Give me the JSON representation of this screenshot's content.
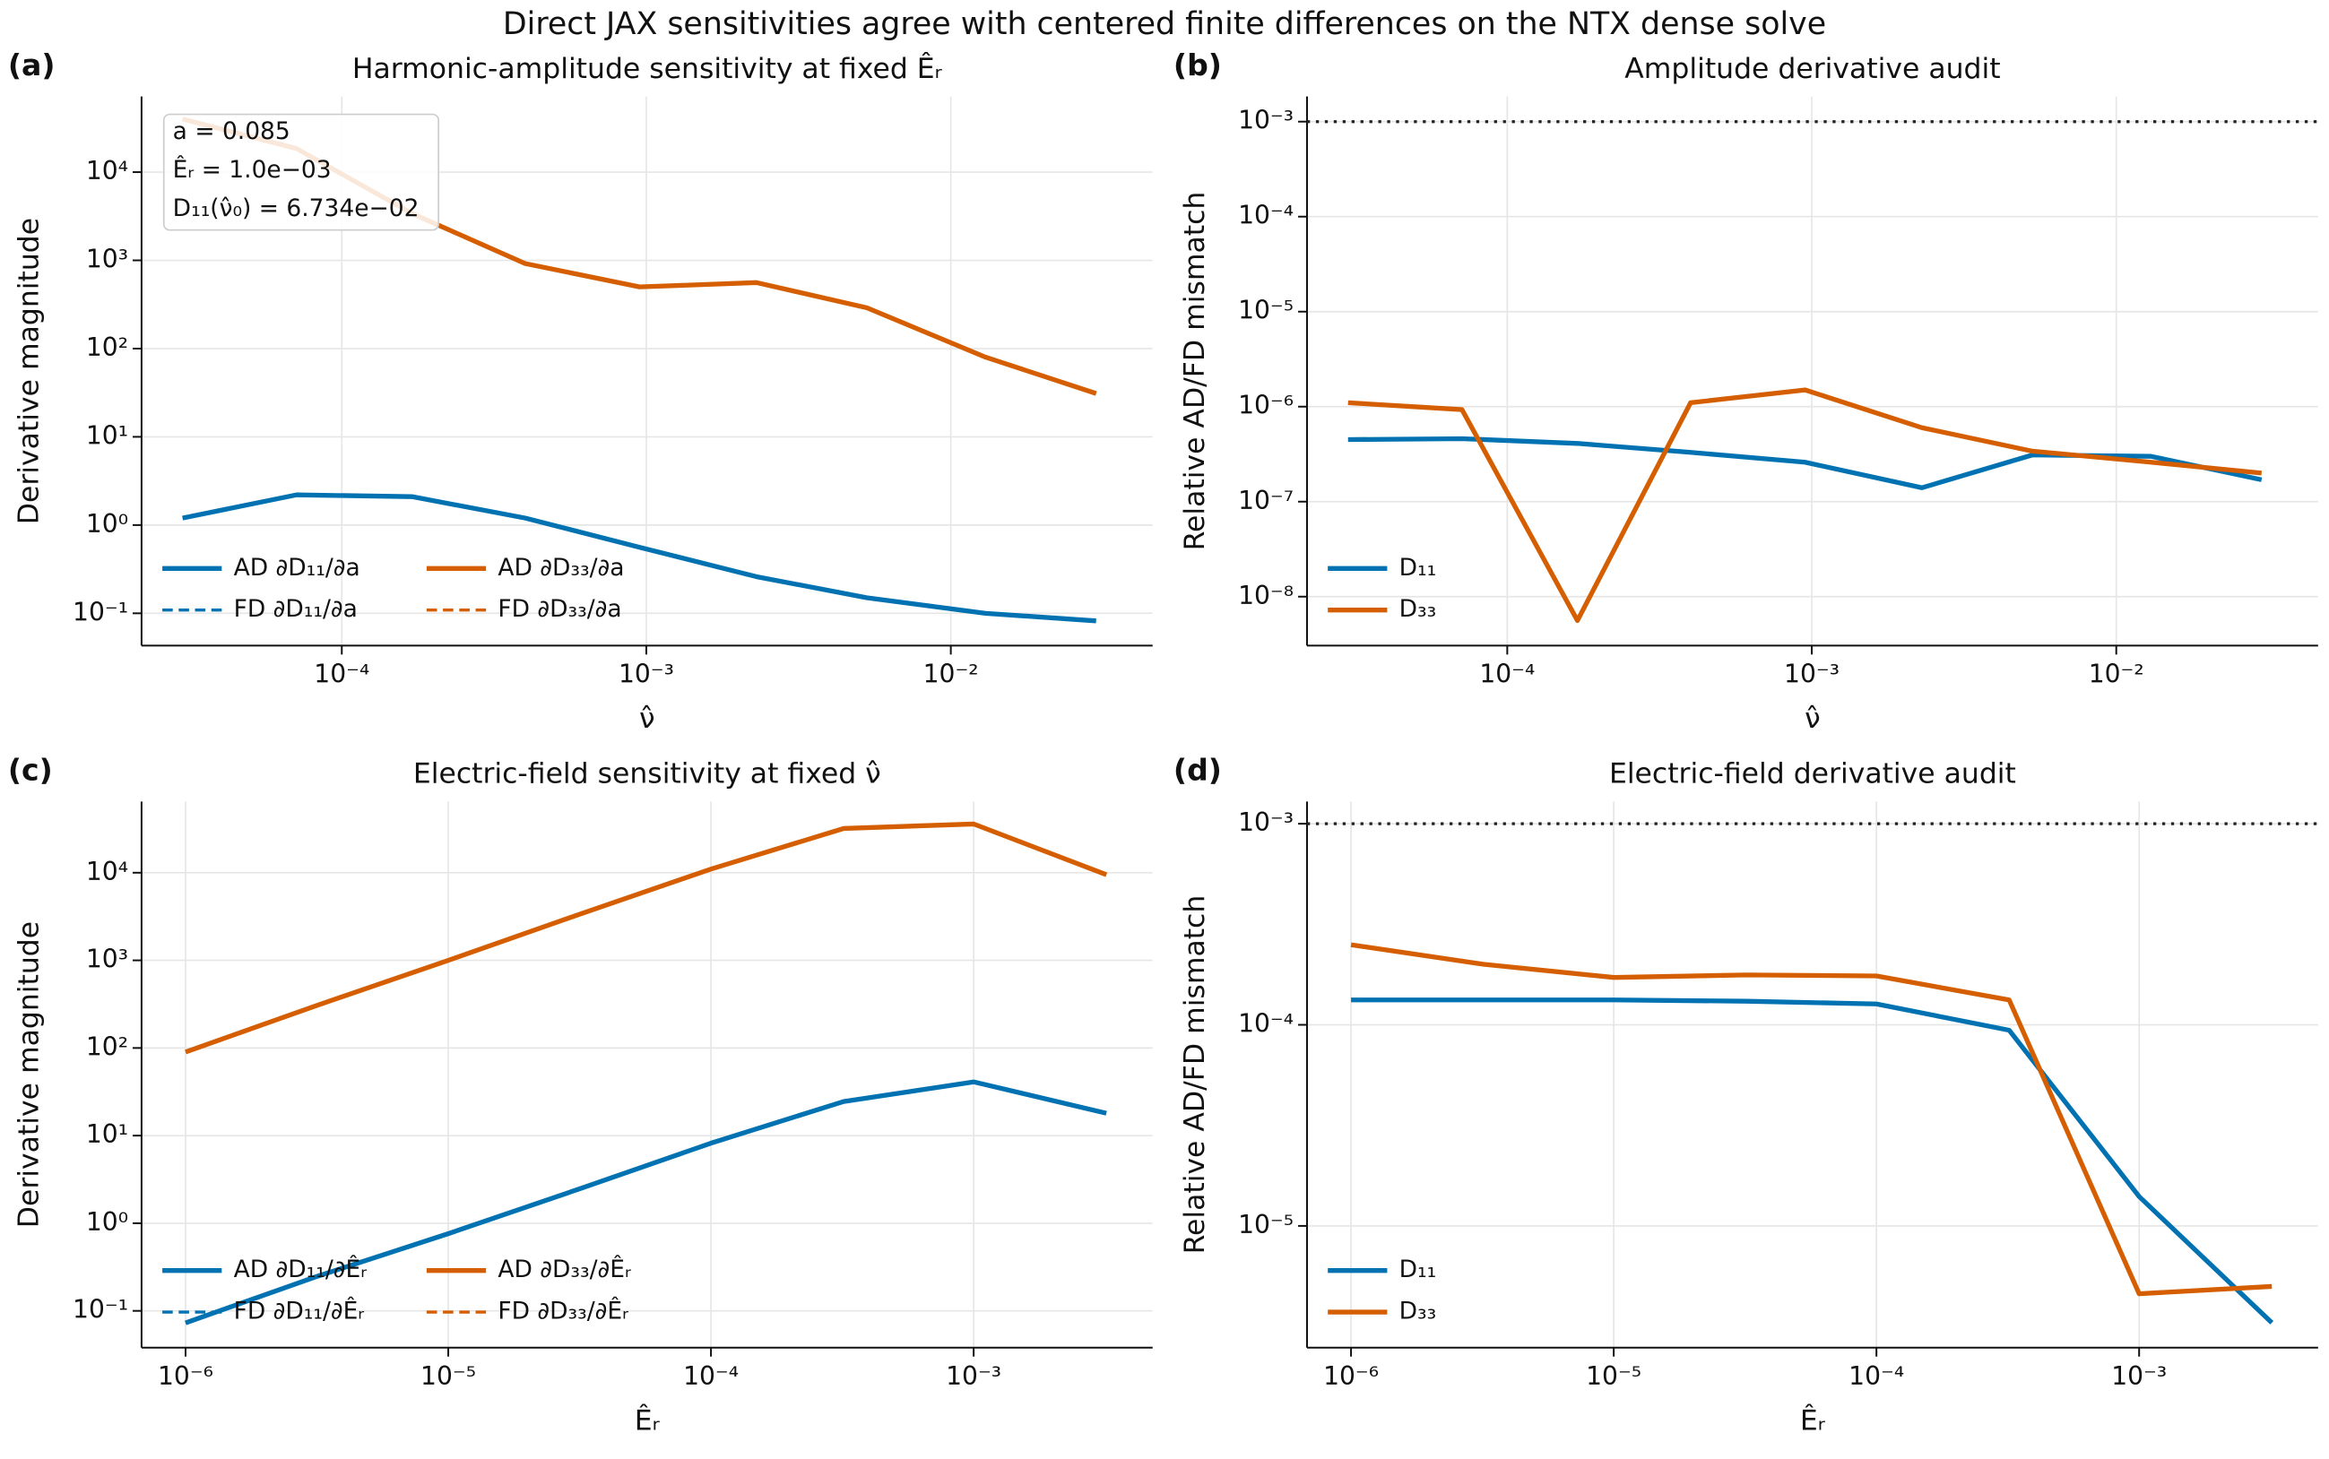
{
  "title": "Direct JAX sensitivities agree with centered finite differences on the NTX dense solve",
  "chart_data": [
    {
      "type": "line",
      "panel_label": "(a)",
      "title": "Harmonic-amplitude sensitivity at fixed Êᵣ",
      "x_label": "ν̂",
      "y_label": "Derivative magnitude",
      "xscale": "log",
      "yscale": "log",
      "grid": true,
      "legend": "lower left",
      "legend_columns": 2,
      "annotations": [
        "a = 0.085",
        "Êᵣ = 1.0e−03",
        "D₁₁(ν̂₀) = 6.734e−02"
      ],
      "x": [
        3e-05,
        7.1e-05,
        0.00017,
        0.0004,
        0.00095,
        0.0023,
        0.0053,
        0.013,
        0.03
      ],
      "xlim": [
        2.2e-05,
        0.046
      ],
      "ylim": [
        0.043,
        72000
      ],
      "xticks": [
        {
          "value": 0.0001,
          "label": "10⁻⁴"
        },
        {
          "value": 0.001,
          "label": "10⁻³"
        },
        {
          "value": 0.01,
          "label": "10⁻²"
        }
      ],
      "yticks": [
        {
          "value": 0.1,
          "label": "10⁻¹"
        },
        {
          "value": 1,
          "label": "10⁰"
        },
        {
          "value": 10,
          "label": "10¹"
        },
        {
          "value": 100,
          "label": "10²"
        },
        {
          "value": 1000,
          "label": "10³"
        },
        {
          "value": 10000,
          "label": "10⁴"
        }
      ],
      "series": [
        {
          "name": "AD ∂D₁₁/∂a",
          "color": "#0072b2",
          "linestyle": "solid",
          "values": [
            1.2,
            2.2,
            2.1,
            1.2,
            0.56,
            0.26,
            0.15,
            0.1,
            0.082
          ]
        },
        {
          "name": "FD ∂D₁₁/∂a",
          "color": "#0072b2",
          "linestyle": "dashed",
          "values": [
            1.2,
            2.2,
            2.1,
            1.2,
            0.56,
            0.26,
            0.15,
            0.1,
            0.082
          ]
        },
        {
          "name": "AD ∂D₃₃/∂a",
          "color": "#d55e00",
          "linestyle": "solid",
          "values": [
            40000,
            18500,
            3400,
            920,
            500,
            560,
            290,
            80,
            31
          ]
        },
        {
          "name": "FD ∂D₃₃/∂a",
          "color": "#d55e00",
          "linestyle": "dashed",
          "values": [
            40000,
            18500,
            3400,
            920,
            500,
            560,
            290,
            80,
            31
          ]
        }
      ]
    },
    {
      "type": "line",
      "panel_label": "(b)",
      "title": "Amplitude derivative audit",
      "x_label": "ν̂",
      "y_label": "Relative AD/FD mismatch",
      "xscale": "log",
      "yscale": "log",
      "grid": true,
      "legend": "lower left",
      "legend_columns": 1,
      "threshold": 0.001,
      "threshold_color": "#222222",
      "x": [
        3e-05,
        7.1e-05,
        0.00017,
        0.0004,
        0.00095,
        0.0023,
        0.0053,
        0.013,
        0.03
      ],
      "xlim": [
        2.2e-05,
        0.046
      ],
      "ylim": [
        3.05e-09,
        0.00184
      ],
      "xticks": [
        {
          "value": 0.0001,
          "label": "10⁻⁴"
        },
        {
          "value": 0.001,
          "label": "10⁻³"
        },
        {
          "value": 0.01,
          "label": "10⁻²"
        }
      ],
      "yticks": [
        {
          "value": 1e-08,
          "label": "10⁻⁸"
        },
        {
          "value": 1e-07,
          "label": "10⁻⁷"
        },
        {
          "value": 1e-06,
          "label": "10⁻⁶"
        },
        {
          "value": 1e-05,
          "label": "10⁻⁵"
        },
        {
          "value": 0.0001,
          "label": "10⁻⁴"
        },
        {
          "value": 0.001,
          "label": "10⁻³"
        }
      ],
      "series": [
        {
          "name": "D₁₁",
          "color": "#0072b2",
          "linestyle": "solid",
          "values": [
            4.5e-07,
            4.6e-07,
            4.1e-07,
            3.3e-07,
            2.6e-07,
            1.4e-07,
            3.1e-07,
            3e-07,
            1.7e-07
          ]
        },
        {
          "name": "D₃₃",
          "color": "#d55e00",
          "linestyle": "solid",
          "values": [
            1.1e-06,
            9.3e-07,
            5.6e-09,
            1.1e-06,
            1.5e-06,
            6e-07,
            3.4e-07,
            2.6e-07,
            2e-07
          ]
        }
      ]
    },
    {
      "type": "line",
      "panel_label": "(c)",
      "title": "Electric-field sensitivity at fixed ν̂",
      "x_label": "Êᵣ",
      "y_label": "Derivative magnitude",
      "xscale": "log",
      "yscale": "log",
      "grid": true,
      "legend": "lower left",
      "legend_columns": 2,
      "x": [
        1e-06,
        3.2e-06,
        1e-05,
        3.2e-05,
        0.0001,
        0.00032,
        0.001,
        0.0032
      ],
      "xlim": [
        6.8e-07,
        0.0048
      ],
      "ylim": [
        0.038,
        65000
      ],
      "xticks": [
        {
          "value": 1e-06,
          "label": "10⁻⁶"
        },
        {
          "value": 1e-05,
          "label": "10⁻⁵"
        },
        {
          "value": 0.0001,
          "label": "10⁻⁴"
        },
        {
          "value": 0.001,
          "label": "10⁻³"
        }
      ],
      "yticks": [
        {
          "value": 0.1,
          "label": "10⁻¹"
        },
        {
          "value": 1,
          "label": "10⁰"
        },
        {
          "value": 10,
          "label": "10¹"
        },
        {
          "value": 100,
          "label": "10²"
        },
        {
          "value": 1000,
          "label": "10³"
        },
        {
          "value": 10000,
          "label": "10⁴"
        }
      ],
      "series": [
        {
          "name": "AD ∂D₁₁/∂Êᵣ",
          "color": "#0072b2",
          "linestyle": "solid",
          "values": [
            0.073,
            0.25,
            0.76,
            2.5,
            8.2,
            24.5,
            41,
            18
          ]
        },
        {
          "name": "FD ∂D₁₁/∂Êᵣ",
          "color": "#0072b2",
          "linestyle": "dashed",
          "values": [
            0.073,
            0.25,
            0.76,
            2.5,
            8.2,
            24.5,
            41,
            18
          ]
        },
        {
          "name": "AD ∂D₃₃/∂Êᵣ",
          "color": "#d55e00",
          "linestyle": "solid",
          "values": [
            90,
            310,
            1000,
            3400,
            11000,
            32000,
            36000,
            9500
          ]
        },
        {
          "name": "FD ∂D₃₃/∂Êᵣ",
          "color": "#d55e00",
          "linestyle": "dashed",
          "values": [
            90,
            310,
            1000,
            3400,
            11000,
            32000,
            36000,
            9500
          ]
        }
      ]
    },
    {
      "type": "line",
      "panel_label": "(d)",
      "title": "Electric-field derivative audit",
      "x_label": "Êᵣ",
      "y_label": "Relative AD/FD mismatch",
      "xscale": "log",
      "yscale": "log",
      "grid": true,
      "legend": "lower left",
      "legend_columns": 1,
      "threshold": 0.001,
      "threshold_color": "#222222",
      "x": [
        1e-06,
        3.2e-06,
        1e-05,
        3.2e-05,
        0.0001,
        0.00032,
        0.001,
        0.0032
      ],
      "xlim": [
        6.8e-07,
        0.0048
      ],
      "ylim": [
        2.48e-06,
        0.00129
      ],
      "xticks": [
        {
          "value": 1e-06,
          "label": "10⁻⁶"
        },
        {
          "value": 1e-05,
          "label": "10⁻⁵"
        },
        {
          "value": 0.0001,
          "label": "10⁻⁴"
        },
        {
          "value": 0.001,
          "label": "10⁻³"
        }
      ],
      "yticks": [
        {
          "value": 1e-05,
          "label": "10⁻⁵"
        },
        {
          "value": 0.0001,
          "label": "10⁻⁴"
        },
        {
          "value": 0.001,
          "label": "10⁻³"
        }
      ],
      "series": [
        {
          "name": "D₁₁",
          "color": "#0072b2",
          "linestyle": "solid",
          "values": [
            0.000133,
            0.000133,
            0.000133,
            0.000131,
            0.000127,
            9.4e-05,
            1.4e-05,
            3.3e-06
          ]
        },
        {
          "name": "D₃₃",
          "color": "#d55e00",
          "linestyle": "solid",
          "values": [
            0.00025,
            0.0002,
            0.000172,
            0.000177,
            0.000175,
            0.000133,
            4.6e-06,
            5e-06
          ]
        }
      ]
    }
  ]
}
